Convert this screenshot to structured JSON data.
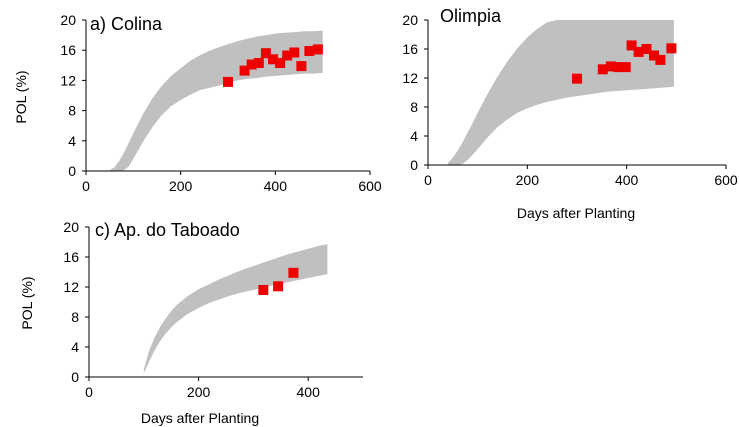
{
  "chart_data": [
    {
      "type": "scatter",
      "title": "a) Colina",
      "xlabel": "",
      "ylabel": "POL (%)",
      "xlim": [
        0,
        600
      ],
      "ylim": [
        0,
        20
      ],
      "xticks": [
        "0",
        "200",
        "400",
        "600"
      ],
      "yticks": [
        "0",
        "4",
        "8",
        "12",
        "16",
        "20"
      ],
      "band": {
        "x": [
          40,
          50,
          60,
          70,
          80,
          90,
          100,
          120,
          140,
          160,
          180,
          200,
          220,
          240,
          260,
          280,
          300,
          320,
          340,
          360,
          380,
          400,
          420,
          440,
          460,
          480,
          500
        ],
        "lower": [
          0,
          0,
          0,
          0,
          0.1,
          0.6,
          1.6,
          3.8,
          5.8,
          7.4,
          8.6,
          9.4,
          10.1,
          10.7,
          11.0,
          11.3,
          11.7,
          12.0,
          12.2,
          12.3,
          12.5,
          12.6,
          12.7,
          12.8,
          12.9,
          12.9,
          13.0
        ],
        "upper": [
          0,
          0.1,
          0.5,
          1.3,
          2.4,
          3.7,
          5.0,
          7.5,
          9.6,
          11.3,
          12.6,
          13.6,
          14.6,
          15.3,
          15.9,
          16.4,
          16.8,
          17.2,
          17.5,
          17.8,
          18.0,
          18.2,
          18.3,
          18.4,
          18.5,
          18.5,
          18.6
        ]
      },
      "points": {
        "x": [
          300,
          335,
          350,
          365,
          380,
          395,
          410,
          425,
          440,
          455,
          472,
          490
        ],
        "y": [
          11.8,
          13.3,
          14.1,
          14.3,
          15.6,
          14.8,
          14.3,
          15.3,
          15.7,
          13.9,
          15.9,
          16.1
        ]
      }
    },
    {
      "type": "scatter",
      "title": "Olimpia",
      "xlabel": "Days after Planting",
      "ylabel": "",
      "xlim": [
        0,
        600
      ],
      "ylim": [
        0,
        20
      ],
      "xticks": [
        "0",
        "200",
        "400",
        "600"
      ],
      "yticks": [
        "0",
        "4",
        "8",
        "12",
        "16",
        "20"
      ],
      "band": {
        "x": [
          40,
          50,
          60,
          70,
          80,
          90,
          100,
          120,
          140,
          160,
          180,
          200,
          220,
          240,
          260,
          280,
          300,
          320,
          340,
          360,
          380,
          400,
          420,
          440,
          460,
          480,
          495
        ],
        "lower": [
          0,
          0,
          0,
          0.2,
          0.7,
          1.4,
          2.2,
          3.8,
          5.2,
          6.3,
          7.2,
          7.8,
          8.3,
          8.7,
          9.0,
          9.3,
          9.5,
          9.7,
          9.9,
          10.1,
          10.2,
          10.3,
          10.4,
          10.5,
          10.6,
          10.7,
          10.8
        ],
        "upper": [
          0.3,
          1.0,
          2.0,
          3.2,
          4.5,
          5.8,
          7.2,
          9.8,
          12.2,
          14.3,
          16.1,
          17.6,
          18.8,
          19.7,
          20,
          20,
          20,
          20,
          20,
          20,
          20,
          20,
          20,
          20,
          20,
          20,
          20
        ]
      },
      "points": {
        "x": [
          300,
          352,
          368,
          383,
          398,
          410,
          424,
          440,
          455,
          468,
          490
        ],
        "y": [
          11.9,
          13.2,
          13.6,
          13.5,
          13.5,
          16.5,
          15.6,
          16.0,
          15.1,
          14.5,
          16.1
        ]
      }
    },
    {
      "type": "scatter",
      "title": "c) Ap. do Taboado",
      "xlabel": "Days after Planting",
      "ylabel": "POL (%)",
      "xlim": [
        0,
        500
      ],
      "ylim": [
        0,
        20
      ],
      "xticks": [
        "0",
        "200",
        "400"
      ],
      "yticks": [
        "0",
        "4",
        "8",
        "12",
        "16",
        "20"
      ],
      "band": {
        "x": [
          100,
          110,
          120,
          130,
          140,
          150,
          160,
          180,
          200,
          220,
          240,
          260,
          280,
          300,
          320,
          340,
          360,
          380,
          400,
          420,
          435
        ],
        "lower": [
          0.5,
          2.1,
          3.6,
          4.8,
          5.8,
          6.6,
          7.3,
          8.4,
          9.2,
          9.9,
          10.4,
          10.9,
          11.3,
          11.6,
          12.0,
          12.3,
          12.6,
          12.9,
          13.2,
          13.5,
          13.7
        ],
        "upper": [
          1.0,
          3.6,
          5.3,
          6.7,
          7.8,
          8.8,
          9.6,
          10.8,
          11.7,
          12.4,
          13.1,
          13.7,
          14.3,
          14.8,
          15.3,
          15.8,
          16.3,
          16.7,
          17.1,
          17.5,
          17.7
        ]
      },
      "points": {
        "x": [
          318,
          345,
          373
        ],
        "y": [
          11.6,
          12.1,
          13.9
        ]
      }
    }
  ]
}
